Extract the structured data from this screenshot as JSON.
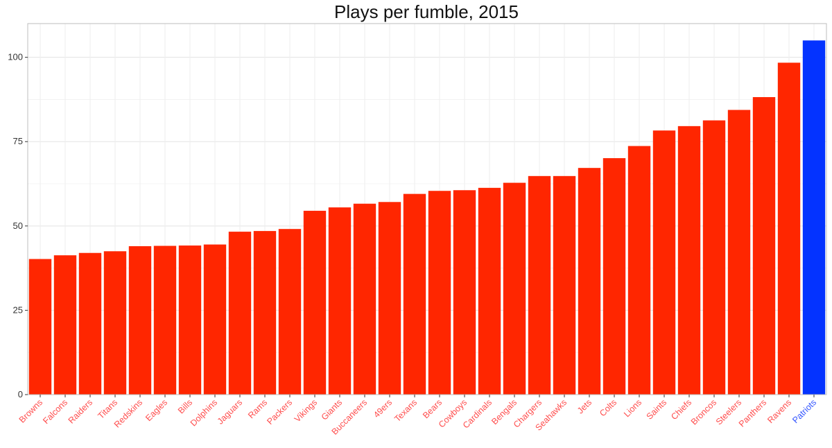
{
  "chart_data": {
    "type": "bar",
    "title": "Plays per fumble, 2015",
    "xlabel": "",
    "ylabel": "",
    "ylim": [
      0,
      110
    ],
    "yticks": [
      0,
      25,
      50,
      75,
      100
    ],
    "grid": true,
    "categories": [
      "Browns",
      "Falcons",
      "Raiders",
      "Titans",
      "Redskins",
      "Eagles",
      "Bills",
      "Dolphins",
      "Jaguars",
      "Rams",
      "Packers",
      "Vikings",
      "Giants",
      "Buccaneers",
      "49ers",
      "Texans",
      "Bears",
      "Cowboys",
      "Cardinals",
      "Bengals",
      "Chargers",
      "Seahawks",
      "Jets",
      "Colts",
      "Lions",
      "Saints",
      "Chiefs",
      "Broncos",
      "Steelers",
      "Panthers",
      "Ravens",
      "Patriots"
    ],
    "values": [
      40.2,
      41.3,
      42.0,
      42.5,
      44.0,
      44.1,
      44.2,
      44.5,
      48.3,
      48.5,
      49.1,
      54.5,
      55.5,
      56.6,
      57.1,
      59.5,
      60.4,
      60.6,
      61.3,
      62.8,
      64.8,
      64.8,
      67.2,
      70.1,
      73.7,
      78.3,
      79.6,
      81.3,
      84.4,
      88.2,
      98.4,
      105.0
    ],
    "colors": {
      "default": "#ff2600",
      "highlight": "#0433ff",
      "highlight_category": "Patriots",
      "default_label": "#ff4d4d",
      "highlight_label": "#3355ff"
    }
  }
}
